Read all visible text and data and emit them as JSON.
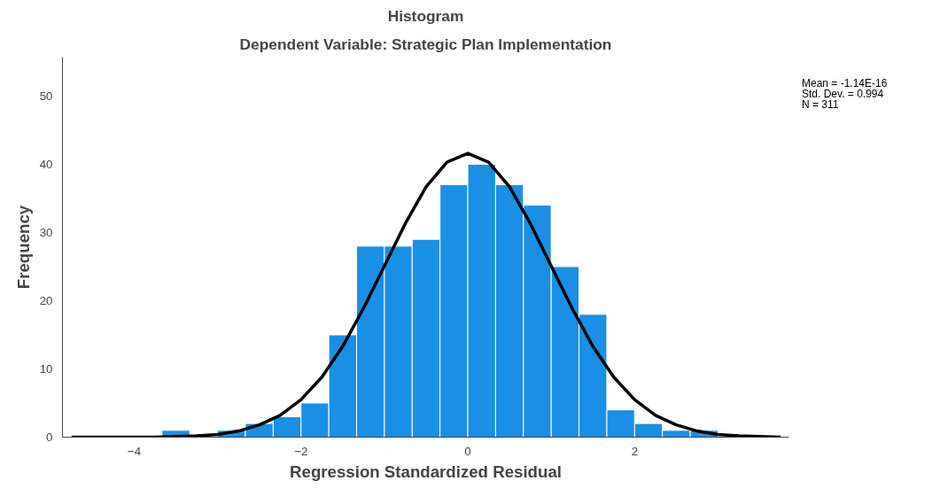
{
  "chart_data": {
    "type": "histogram",
    "title": "Histogram",
    "subtitle": "Dependent Variable: Strategic Plan Implementation",
    "xlabel": "Regression Standardized Residual",
    "ylabel": "Frequency",
    "bins": [
      -3.6667,
      -3.3333,
      -3.0,
      -2.6667,
      -2.3333,
      -2.0,
      -1.6667,
      -1.3333,
      -1.0,
      -0.6667,
      -0.3333,
      0.0,
      0.3333,
      0.6667,
      1.0,
      1.3333,
      1.6667,
      2.0,
      2.3333,
      2.6667,
      3.0
    ],
    "values": [
      1,
      0,
      1,
      2,
      3,
      5,
      15,
      28,
      28,
      29,
      37,
      40,
      37,
      34,
      25,
      18,
      4,
      2,
      1,
      1
    ],
    "color": "#1a8fe6",
    "series": [
      {
        "type": "line",
        "color": "#000000",
        "x": [
          -4.75,
          -4.5,
          -4.25,
          -4.0,
          -3.75,
          -3.5,
          -3.25,
          -3.0,
          -2.75,
          -2.5,
          -2.25,
          -2.0,
          -1.75,
          -1.5,
          -1.25,
          -1.0,
          -0.75,
          -0.5,
          -0.25,
          0.0,
          0.25,
          0.5,
          0.75,
          1.0,
          1.25,
          1.5,
          1.75,
          2.0,
          2.25,
          2.5,
          2.75,
          3.0,
          3.25,
          3.5,
          3.75
        ],
        "values": [
          0.0,
          0.0,
          0.0,
          0.0,
          0.0,
          0.1,
          0.2,
          0.4,
          0.9,
          1.8,
          3.2,
          5.5,
          8.8,
          13.3,
          18.9,
          25.1,
          31.3,
          36.7,
          40.3,
          41.6,
          40.3,
          36.7,
          31.3,
          25.1,
          18.9,
          13.3,
          8.8,
          5.5,
          3.2,
          1.8,
          0.9,
          0.4,
          0.2,
          0.1,
          0.0
        ]
      }
    ],
    "xlim": [
      -4.86,
      3.85
    ],
    "ylim": [
      0,
      55.7
    ],
    "xticks": [
      -4,
      -2,
      0,
      2
    ],
    "yticks": [
      0,
      10,
      20,
      30,
      40,
      50
    ],
    "grid": false,
    "marker": "none",
    "line_style": "solid",
    "annotations": [
      "Mean = -1.14E-16",
      "Std. Dev. = 0.994",
      "N = 311"
    ]
  }
}
